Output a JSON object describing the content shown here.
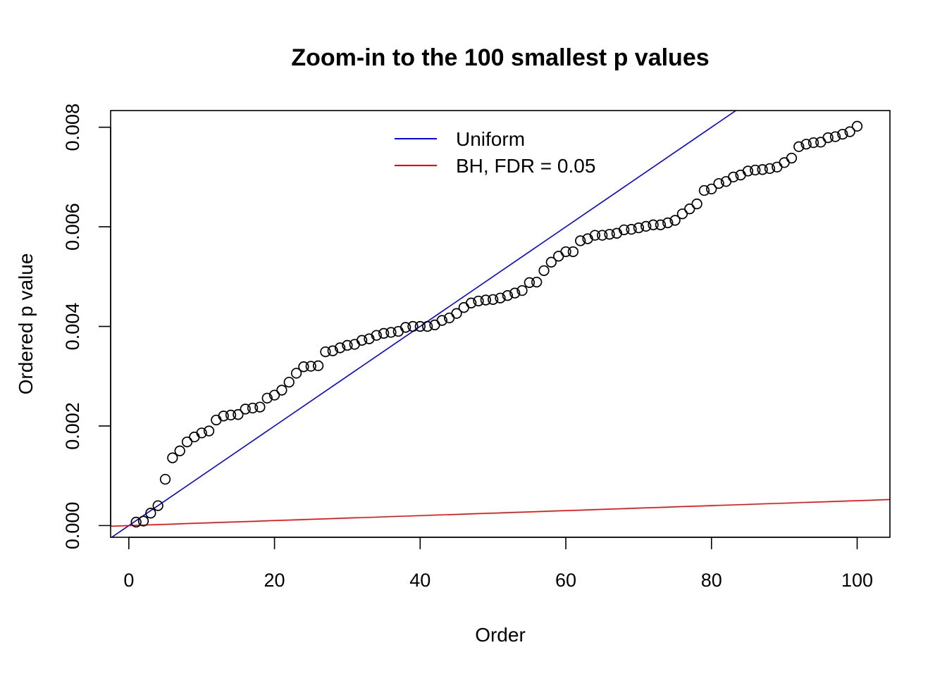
{
  "chart_data": {
    "type": "scatter",
    "title": "Zoom-in to the 100 smallest p values",
    "xlabel": "Order",
    "ylabel": "Ordered p value",
    "xlim": [
      -2.5,
      104.5
    ],
    "ylim": [
      -0.000235,
      0.008335
    ],
    "x_ticks": [
      0,
      20,
      40,
      60,
      80,
      100
    ],
    "x_tick_labels": [
      "0",
      "20",
      "40",
      "60",
      "80",
      "100"
    ],
    "y_ticks": [
      0.0,
      0.002,
      0.004,
      0.006,
      0.008
    ],
    "y_tick_labels": [
      "0.000",
      "0.002",
      "0.004",
      "0.006",
      "0.008"
    ],
    "grid": false,
    "legend": {
      "position": "top-center",
      "entries": [
        {
          "label": "Uniform",
          "color": "#0000ff"
        },
        {
          "label": "BH, FDR = 0.05",
          "color": "#ff0000"
        }
      ]
    },
    "lines": [
      {
        "name": "Uniform",
        "color": "#0000ff",
        "intercept": 0,
        "slope": 0.0001
      },
      {
        "name": "BH, FDR = 0.05",
        "color": "#ff0000",
        "intercept": 0,
        "slope": 5e-06
      }
    ],
    "series": [
      {
        "name": "Ordered p values",
        "marker": "open-circle",
        "color": "#000000",
        "x": [
          1,
          2,
          3,
          4,
          5,
          6,
          7,
          8,
          9,
          10,
          11,
          12,
          13,
          14,
          15,
          16,
          17,
          18,
          19,
          20,
          21,
          22,
          23,
          24,
          25,
          26,
          27,
          28,
          29,
          30,
          31,
          32,
          33,
          34,
          35,
          36,
          37,
          38,
          39,
          40,
          41,
          42,
          43,
          44,
          45,
          46,
          47,
          48,
          49,
          50,
          51,
          52,
          53,
          54,
          55,
          56,
          57,
          58,
          59,
          60,
          61,
          62,
          63,
          64,
          65,
          66,
          67,
          68,
          69,
          70,
          71,
          72,
          73,
          74,
          75,
          76,
          77,
          78,
          79,
          80,
          81,
          82,
          83,
          84,
          85,
          86,
          87,
          88,
          89,
          90,
          91,
          92,
          93,
          94,
          95,
          96,
          97,
          98,
          99,
          100
        ],
        "y": [
          7e-05,
          9e-05,
          0.00025,
          0.0004,
          0.00093,
          0.00136,
          0.0015,
          0.00168,
          0.00178,
          0.00186,
          0.0019,
          0.00212,
          0.0022,
          0.00222,
          0.00223,
          0.00234,
          0.00236,
          0.00238,
          0.00256,
          0.00262,
          0.00272,
          0.00288,
          0.00306,
          0.00319,
          0.0032,
          0.00321,
          0.00349,
          0.00351,
          0.00357,
          0.00362,
          0.00364,
          0.00372,
          0.00375,
          0.00382,
          0.00386,
          0.00388,
          0.0039,
          0.00398,
          0.004,
          0.004,
          0.004,
          0.00403,
          0.00412,
          0.00417,
          0.00426,
          0.00438,
          0.00447,
          0.00451,
          0.00453,
          0.00454,
          0.00457,
          0.00462,
          0.00467,
          0.00472,
          0.00488,
          0.00489,
          0.00512,
          0.00529,
          0.00541,
          0.0055,
          0.0055,
          0.00572,
          0.00576,
          0.00583,
          0.00583,
          0.00585,
          0.00587,
          0.00594,
          0.00595,
          0.00598,
          0.00601,
          0.00604,
          0.00604,
          0.00608,
          0.00613,
          0.00626,
          0.00636,
          0.00646,
          0.00673,
          0.00676,
          0.00687,
          0.00691,
          0.007,
          0.00704,
          0.00712,
          0.00714,
          0.00715,
          0.00717,
          0.0072,
          0.00729,
          0.00738,
          0.00761,
          0.00766,
          0.00769,
          0.0077,
          0.00779,
          0.00781,
          0.00786,
          0.00791,
          0.00802
        ]
      }
    ]
  }
}
